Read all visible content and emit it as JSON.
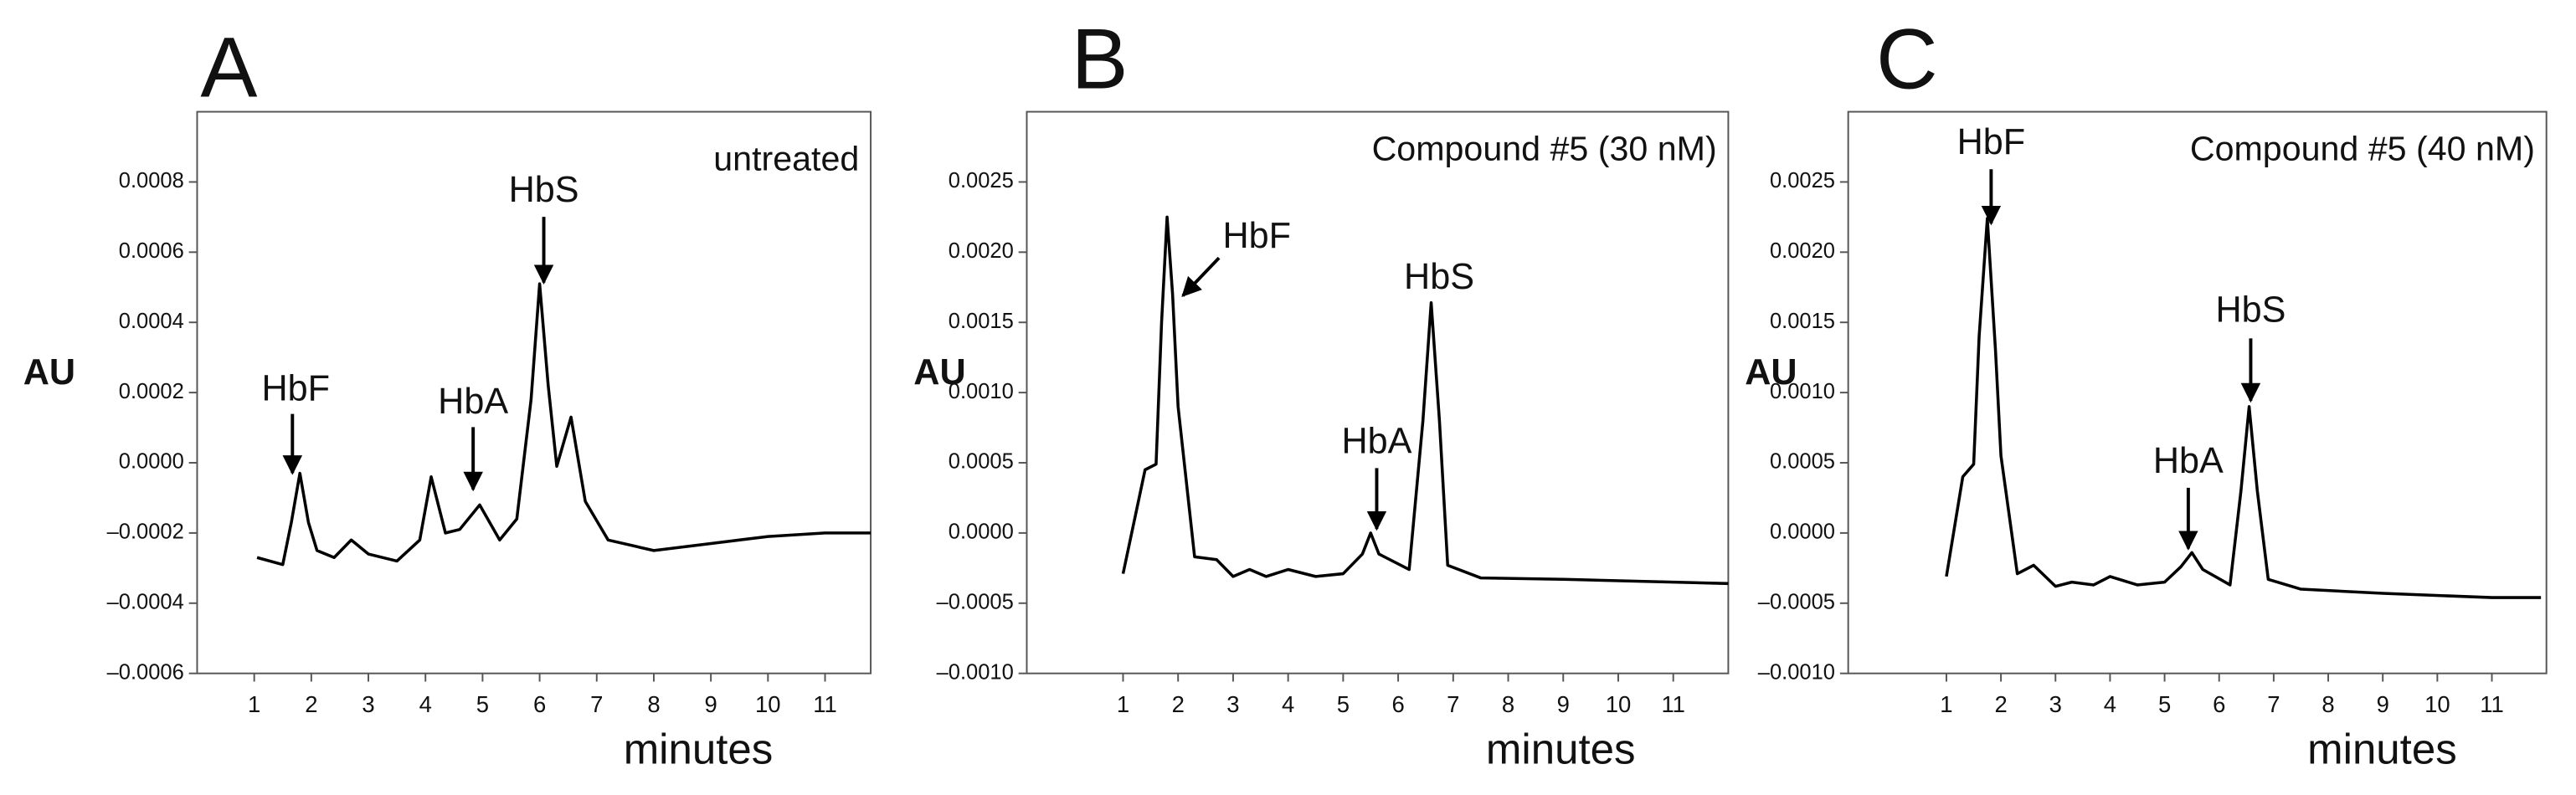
{
  "chart_data": [
    {
      "type": "line",
      "title": "A",
      "label": "untreated",
      "ylabel": "AU",
      "xlabel": "minutes",
      "annotations": [
        "HbF",
        "HbA",
        "HbS"
      ],
      "color": "#000000",
      "x": [
        1.05,
        1.5,
        1.65,
        1.8,
        1.95,
        2.1,
        2.4,
        2.7,
        3.0,
        3.5,
        3.9,
        4.1,
        4.35,
        4.6,
        4.95,
        5.3,
        5.6,
        5.85,
        6.0,
        6.15,
        6.3,
        6.55,
        6.8,
        7.2,
        8,
        9,
        10,
        11,
        11.8
      ],
      "values": [
        -0.00027,
        -0.00029,
        -0.00017,
        -3e-05,
        -0.00017,
        -0.00025,
        -0.00027,
        -0.00022,
        -0.00026,
        -0.00028,
        -0.00022,
        -4e-05,
        -0.0002,
        -0.00019,
        -0.00012,
        -0.00022,
        -0.00016,
        0.00018,
        0.00051,
        0.00022,
        -1e-05,
        0.00013,
        -0.00011,
        -0.00022,
        -0.00025,
        -0.00023,
        -0.00021,
        -0.0002,
        -0.0002
      ],
      "xlim": [
        0,
        11.8
      ],
      "ylim": [
        -0.0006,
        0.001
      ],
      "xticks": [
        1,
        2,
        3,
        4,
        5,
        6,
        7,
        8,
        9,
        10,
        11
      ],
      "yticks": [
        0.0008,
        0.0006,
        0.0004,
        0.0002,
        {
          "value": 0,
          "label": "0.0000"
        },
        {
          "value": -0.0002,
          "label": "–0.0002"
        },
        {
          "value": -0.0004,
          "label": "–0.0004"
        },
        {
          "value": -0.0006,
          "label": "–0.0006"
        }
      ]
    },
    {
      "type": "line",
      "title": "B",
      "label": "Compound #5 (30 nM)",
      "ylabel": "AU",
      "xlabel": "minutes",
      "annotations": [
        "HbF",
        "HbA",
        "HbS"
      ],
      "color": "#000000",
      "x": [
        1.0,
        1.4,
        1.6,
        1.7,
        1.8,
        1.9,
        2.0,
        2.3,
        2.7,
        3.0,
        3.3,
        3.6,
        4.0,
        4.5,
        5.0,
        5.35,
        5.5,
        5.65,
        6.2,
        6.45,
        6.6,
        6.75,
        6.9,
        7.5,
        9,
        11,
        12
      ],
      "values": [
        -0.00029,
        0.00045,
        0.00049,
        0.0015,
        0.00225,
        0.0017,
        0.0009,
        -0.00017,
        -0.00019,
        -0.00031,
        -0.00026,
        -0.00031,
        -0.00026,
        -0.00031,
        -0.00029,
        -0.00015,
        0,
        -0.00015,
        -0.00026,
        0.0008,
        0.00164,
        0.0008,
        -0.00023,
        -0.00032,
        -0.00033,
        -0.00035,
        -0.00036
      ],
      "xlim": [
        -0.75,
        12
      ],
      "ylim": [
        -0.001,
        0.003
      ],
      "xticks": [
        1,
        2,
        3,
        4,
        5,
        6,
        7,
        8,
        9,
        10,
        11
      ],
      "yticks": [
        0.0025,
        {
          "value": 0.002,
          "label": "0.0020"
        },
        0.0015,
        {
          "value": 0.001,
          "label": "0.0010"
        },
        0.0005,
        {
          "value": 0,
          "label": "0.0000"
        },
        {
          "value": -0.0005,
          "label": "–0.0005"
        },
        {
          "value": -0.001,
          "label": "–0.0010"
        }
      ]
    },
    {
      "type": "line",
      "title": "C",
      "label": "Compound #5 (40 nM)",
      "ylabel": "AU",
      "xlabel": "minutes",
      "annotations": [
        "HbF",
        "HbA",
        "HbS"
      ],
      "color": "#000000",
      "x": [
        1.0,
        1.3,
        1.5,
        1.6,
        1.75,
        1.9,
        2.0,
        2.3,
        2.6,
        3.0,
        3.3,
        3.7,
        4.0,
        4.5,
        5.0,
        5.3,
        5.5,
        5.7,
        6.2,
        6.4,
        6.55,
        6.7,
        6.9,
        7.5,
        9,
        11,
        11.9
      ],
      "values": [
        -0.00031,
        0.0004,
        0.00049,
        0.0014,
        0.00224,
        0.0013,
        0.00055,
        -0.00029,
        -0.00023,
        -0.00038,
        -0.00035,
        -0.00037,
        -0.00031,
        -0.00037,
        -0.00035,
        -0.00024,
        -0.00014,
        -0.00026,
        -0.00037,
        0.0003,
        0.0009,
        0.0003,
        -0.00033,
        -0.0004,
        -0.00043,
        -0.00046,
        -0.00046
      ],
      "xlim": [
        -0.8,
        12
      ],
      "ylim": [
        -0.001,
        0.003
      ],
      "xticks": [
        1,
        2,
        3,
        4,
        5,
        6,
        7,
        8,
        9,
        10,
        11
      ],
      "yticks": [
        0.0025,
        {
          "value": 0.002,
          "label": "0.0020"
        },
        0.0015,
        {
          "value": 0.001,
          "label": "0.0010"
        },
        0.0005,
        {
          "value": 0,
          "label": "0.0000"
        },
        {
          "value": -0.0005,
          "label": "–0.0005"
        },
        {
          "value": -0.001,
          "label": "–0.0010"
        }
      ]
    }
  ]
}
